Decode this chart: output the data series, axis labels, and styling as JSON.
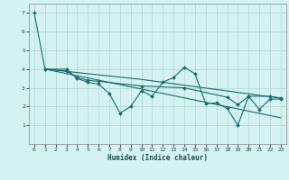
{
  "xlabel": "Humidex (Indice chaleur)",
  "ylabel": "",
  "bg_color": "#d4f2f2",
  "grid_color": "#b8d8d8",
  "line_color": "#1a6b6b",
  "xlim": [
    -0.5,
    23.5
  ],
  "ylim": [
    0,
    7.5
  ],
  "xticks": [
    0,
    1,
    2,
    3,
    4,
    5,
    6,
    7,
    8,
    9,
    10,
    11,
    12,
    13,
    14,
    15,
    16,
    17,
    18,
    19,
    20,
    21,
    22,
    23
  ],
  "yticks": [
    1,
    2,
    3,
    4,
    5,
    6,
    7
  ],
  "series": [
    [
      0,
      7.0
    ],
    [
      1,
      4.0
    ],
    [
      3,
      4.0
    ],
    [
      4,
      3.5
    ],
    [
      5,
      3.3
    ],
    [
      6,
      3.2
    ],
    [
      7,
      2.7
    ],
    [
      8,
      1.65
    ],
    [
      9,
      2.0
    ],
    [
      10,
      2.85
    ],
    [
      11,
      2.55
    ],
    [
      12,
      3.3
    ],
    [
      13,
      3.55
    ],
    [
      14,
      4.1
    ],
    [
      15,
      3.75
    ],
    [
      16,
      2.15
    ],
    [
      17,
      2.2
    ],
    [
      18,
      1.9
    ],
    [
      19,
      1.0
    ],
    [
      20,
      2.55
    ],
    [
      21,
      1.85
    ],
    [
      22,
      2.4
    ],
    [
      23,
      2.4
    ]
  ],
  "series2": [
    [
      1,
      4.0
    ],
    [
      3,
      3.9
    ],
    [
      4,
      3.55
    ],
    [
      5,
      3.4
    ],
    [
      6,
      3.35
    ],
    [
      10,
      3.1
    ],
    [
      14,
      3.0
    ],
    [
      18,
      2.5
    ],
    [
      19,
      2.1
    ],
    [
      20,
      2.55
    ],
    [
      22,
      2.55
    ],
    [
      23,
      2.45
    ]
  ],
  "series3": [
    [
      1,
      4.0
    ],
    [
      10,
      3.45
    ],
    [
      23,
      2.45
    ]
  ],
  "series4": [
    [
      1,
      4.0
    ],
    [
      23,
      1.4
    ]
  ]
}
